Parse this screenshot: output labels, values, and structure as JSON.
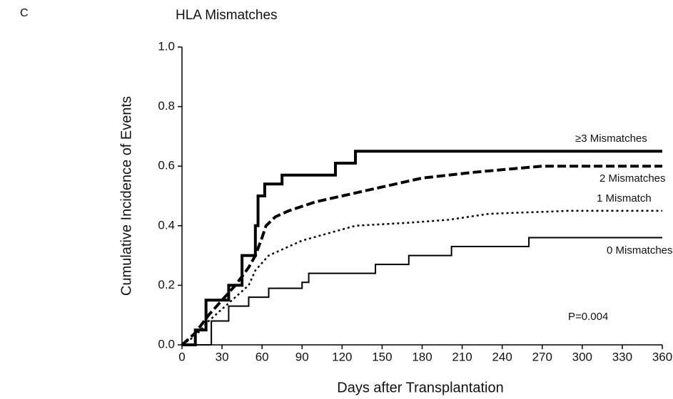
{
  "panel_label": "C",
  "chart_data": {
    "type": "line",
    "step": true,
    "title": "HLA Mismatches",
    "xlabel": "Days after Transplantation",
    "ylabel": "Cumulative Incidence of Events",
    "annotation": "P=0.004",
    "xlim": [
      0,
      360
    ],
    "ylim": [
      0,
      1
    ],
    "xticks": [
      0,
      30,
      60,
      90,
      120,
      150,
      180,
      210,
      240,
      270,
      300,
      330,
      360
    ],
    "yticks": [
      {
        "value": 0,
        "label": "0.0"
      },
      0.2,
      0.4,
      0.6,
      0.8,
      {
        "value": 1,
        "label": "1.0"
      }
    ],
    "series": [
      {
        "name": "≥3 Mismatches",
        "color": "#000000",
        "style": "solid",
        "width": 4,
        "x": [
          0,
          10,
          10,
          18,
          18,
          35,
          35,
          45,
          45,
          55,
          55,
          57,
          57,
          62,
          62,
          75,
          75,
          115,
          115,
          130,
          130,
          170,
          170,
          360
        ],
        "values": [
          0,
          0,
          0.05,
          0.05,
          0.15,
          0.15,
          0.2,
          0.2,
          0.3,
          0.3,
          0.4,
          0.4,
          0.5,
          0.5,
          0.54,
          0.54,
          0.57,
          0.57,
          0.61,
          0.61,
          0.65,
          0.65,
          0.65,
          0.65
        ]
      },
      {
        "name": "2 Mismatches",
        "color": "#000000",
        "style": "dashed",
        "width": 4,
        "x": [
          0,
          10,
          20,
          30,
          40,
          50,
          55,
          60,
          63,
          70,
          80,
          100,
          120,
          150,
          180,
          220,
          270,
          360
        ],
        "values": [
          0,
          0.04,
          0.1,
          0.15,
          0.2,
          0.26,
          0.3,
          0.36,
          0.4,
          0.43,
          0.45,
          0.48,
          0.5,
          0.53,
          0.56,
          0.58,
          0.6,
          0.6
        ]
      },
      {
        "name": "1 Mismatch",
        "color": "#000000",
        "style": "dotted",
        "width": 2.5,
        "x": [
          0,
          10,
          20,
          30,
          40,
          50,
          55,
          65,
          90,
          130,
          170,
          200,
          230,
          290,
          360
        ],
        "values": [
          0,
          0.03,
          0.08,
          0.12,
          0.16,
          0.2,
          0.25,
          0.3,
          0.35,
          0.4,
          0.41,
          0.42,
          0.44,
          0.45,
          0.45
        ]
      },
      {
        "name": "0 Mismatches",
        "color": "#000000",
        "style": "solid",
        "width": 2,
        "x": [
          0,
          22,
          22,
          35,
          35,
          50,
          50,
          65,
          65,
          90,
          90,
          95,
          95,
          145,
          145,
          170,
          170,
          202,
          202,
          260,
          260,
          360
        ],
        "values": [
          0,
          0,
          0.08,
          0.08,
          0.13,
          0.13,
          0.16,
          0.16,
          0.19,
          0.19,
          0.21,
          0.21,
          0.24,
          0.24,
          0.27,
          0.27,
          0.3,
          0.3,
          0.33,
          0.33,
          0.36,
          0.36
        ]
      }
    ]
  }
}
